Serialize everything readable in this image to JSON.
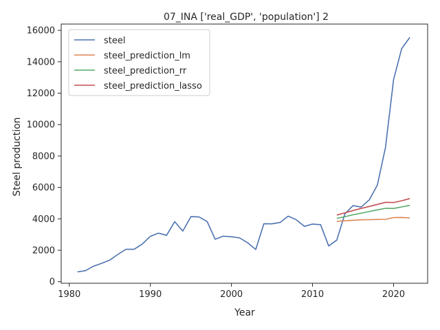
{
  "chart_data": {
    "type": "line",
    "title": "07_INA ['real_GDP', 'population'] 2",
    "xlabel": "Year",
    "ylabel": "Steel production",
    "xlim": [
      1979,
      2024.2
    ],
    "ylim": [
      -100,
      16400
    ],
    "x_ticks": [
      1980,
      1990,
      2000,
      2010,
      2020
    ],
    "y_ticks": [
      0,
      2000,
      4000,
      6000,
      8000,
      10000,
      12000,
      14000,
      16000
    ],
    "grid": false,
    "legend_position": "top-left",
    "series": [
      {
        "name": "steel",
        "color": "#4c72b0",
        "x": [
          1981,
          1982,
          1983,
          1984,
          1985,
          1986,
          1987,
          1988,
          1989,
          1990,
          1991,
          1992,
          1993,
          1994,
          1995,
          1996,
          1997,
          1998,
          1999,
          2000,
          2001,
          2002,
          2003,
          2004,
          2005,
          2006,
          2007,
          2008,
          2009,
          2010,
          2011,
          2012,
          2013,
          2014,
          2015,
          2016,
          2017,
          2018,
          2019,
          2020,
          2021,
          2022
        ],
        "y": [
          620,
          700,
          990,
          1170,
          1380,
          1740,
          2060,
          2060,
          2390,
          2890,
          3090,
          2950,
          3820,
          3220,
          4140,
          4120,
          3830,
          2700,
          2900,
          2860,
          2790,
          2480,
          2050,
          3690,
          3680,
          3770,
          4170,
          3940,
          3520,
          3670,
          3630,
          2270,
          2650,
          4320,
          4840,
          4750,
          5210,
          6150,
          8550,
          12870,
          14840,
          15550
        ]
      },
      {
        "name": "steel_prediction_lm",
        "color": "#dd8452",
        "x": [
          2013,
          2014,
          2015,
          2016,
          2017,
          2018,
          2019,
          2020,
          2021,
          2022
        ],
        "y": [
          3840,
          3880,
          3910,
          3940,
          3950,
          3960,
          3970,
          4080,
          4090,
          4060
        ]
      },
      {
        "name": "steel_prediction_rr",
        "color": "#55a868",
        "x": [
          2013,
          2014,
          2015,
          2016,
          2017,
          2018,
          2019,
          2020,
          2021,
          2022
        ],
        "y": [
          4030,
          4140,
          4260,
          4360,
          4470,
          4570,
          4670,
          4660,
          4760,
          4860
        ]
      },
      {
        "name": "steel_prediction_lasso",
        "color": "#c44e52",
        "x": [
          2013,
          2014,
          2015,
          2016,
          2017,
          2018,
          2019,
          2020,
          2021,
          2022
        ],
        "y": [
          4240,
          4380,
          4530,
          4660,
          4790,
          4920,
          5050,
          5040,
          5150,
          5290
        ]
      }
    ]
  }
}
